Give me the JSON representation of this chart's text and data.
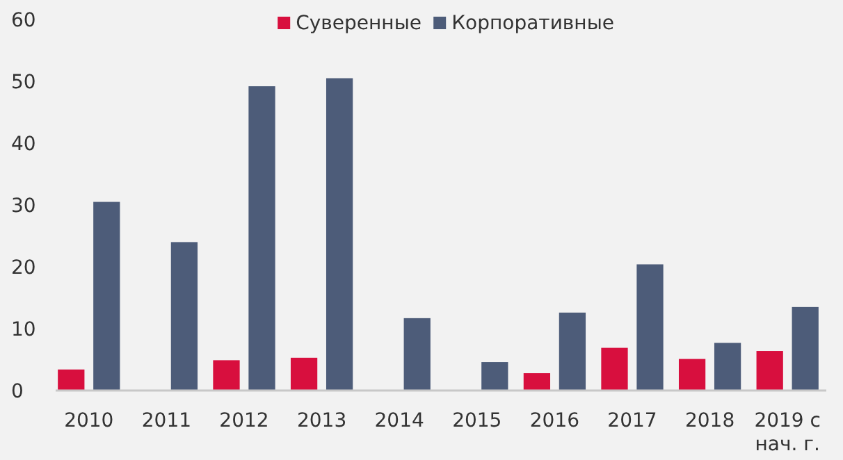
{
  "chart_data": {
    "type": "bar",
    "categories": [
      "2010",
      "2011",
      "2012",
      "2013",
      "2014",
      "2015",
      "2016",
      "2017",
      "2018",
      "2019 с нач. г."
    ],
    "series": [
      {
        "name": "Суверенные",
        "color": "#d80f3e",
        "values": [
          3.4,
          null,
          4.9,
          5.3,
          null,
          null,
          2.8,
          6.9,
          5.1,
          6.4
        ]
      },
      {
        "name": "Корпоративные",
        "color": "#4d5c79",
        "values": [
          30.5,
          24,
          49.2,
          50.5,
          11.7,
          4.6,
          12.6,
          20.4,
          7.7,
          13.5
        ]
      }
    ],
    "ylim": [
      0,
      60
    ],
    "yticks": [
      0,
      10,
      20,
      30,
      40,
      50,
      60
    ],
    "grid": false,
    "legend": "top"
  }
}
